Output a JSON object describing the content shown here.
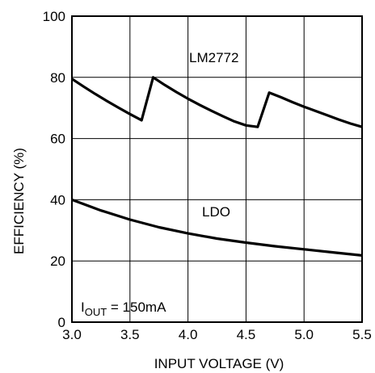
{
  "chart_data": {
    "type": "line",
    "title": "",
    "xlabel": "INPUT VOLTAGE (V)",
    "ylabel": "EFFICIENCY (%)",
    "xlim": [
      3.0,
      5.5
    ],
    "ylim": [
      0,
      100
    ],
    "xticks": [
      "3.0",
      "3.5",
      "4.0",
      "4.5",
      "5.0",
      "5.5"
    ],
    "yticks": [
      "0",
      "20",
      "40",
      "60",
      "80",
      "100"
    ],
    "grid": true,
    "series": [
      {
        "name": "LM2772",
        "color": "#000000",
        "x": [
          3.0,
          3.1,
          3.2,
          3.3,
          3.4,
          3.5,
          3.6,
          3.7,
          3.8,
          3.9,
          4.0,
          4.1,
          4.2,
          4.3,
          4.4,
          4.5,
          4.6,
          4.7,
          4.8,
          4.9,
          5.0,
          5.1,
          5.2,
          5.3,
          5.4,
          5.5
        ],
        "values": [
          79.5,
          77.0,
          74.6,
          72.3,
          70.1,
          68.0,
          66.0,
          80.0,
          77.5,
          75.2,
          73.0,
          71.0,
          69.1,
          67.3,
          65.6,
          64.3,
          63.8,
          75.0,
          73.5,
          71.9,
          70.4,
          69.0,
          67.6,
          66.2,
          64.9,
          63.8
        ]
      },
      {
        "name": "LDO",
        "color": "#000000",
        "x": [
          3.0,
          3.25,
          3.5,
          3.75,
          4.0,
          4.25,
          4.5,
          4.75,
          5.0,
          5.25,
          5.5
        ],
        "values": [
          40.0,
          36.5,
          33.5,
          31.0,
          29.0,
          27.3,
          26.0,
          24.8,
          23.8,
          22.8,
          21.8
        ]
      }
    ],
    "annotations": {
      "lm2772_label": "LM2772",
      "ldo_label": "LDO",
      "iout_main": "I",
      "iout_sub": "OUT",
      "iout_rest": " = 150mA"
    }
  }
}
